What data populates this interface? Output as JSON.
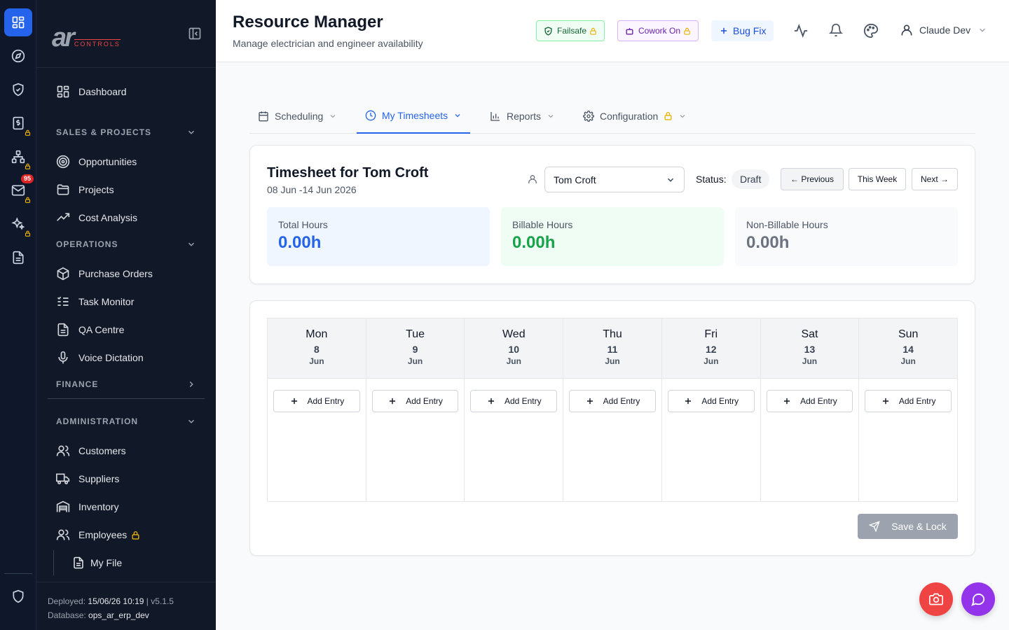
{
  "rail": {
    "mail_badge": "95"
  },
  "sidebar": {
    "logo_main": "ar",
    "logo_sub": "CONTROLS",
    "dashboard": "Dashboard",
    "sales_section": "SALES & PROJECTS",
    "opportunities": "Opportunities",
    "projects": "Projects",
    "cost_analysis": "Cost Analysis",
    "operations_section": "OPERATIONS",
    "purchase_orders": "Purchase Orders",
    "task_monitor": "Task Monitor",
    "qa_centre": "QA Centre",
    "voice_dictation": "Voice Dictation",
    "finance_section": "FINANCE",
    "admin_section": "ADMINISTRATION",
    "customers": "Customers",
    "suppliers": "Suppliers",
    "inventory": "Inventory",
    "employees": "Employees",
    "my_file": "My File",
    "deployed_label": "Deployed:",
    "deployed_value": "15/06/26 10:19",
    "version": "v5.1.5",
    "database_label": "Database:",
    "database_value": "ops_ar_erp_dev"
  },
  "header": {
    "title": "Resource Manager",
    "subtitle": "Manage electrician and engineer availability",
    "failsafe": "Failsafe",
    "cowork": "Cowork On",
    "bugfix": "Bug Fix",
    "user": "Claude Dev"
  },
  "tabs": {
    "scheduling": "Scheduling",
    "timesheets": "My Timesheets",
    "reports": "Reports",
    "configuration": "Configuration"
  },
  "timesheet": {
    "title": "Timesheet for Tom Croft",
    "range": "08 Jun -14 Jun 2026",
    "employee": "Tom Croft",
    "status_label": "Status:",
    "status": "Draft",
    "prev": "← Previous",
    "this_week": "This Week",
    "next": "Next →",
    "total_label": "Total Hours",
    "total_value": "0.00h",
    "billable_label": "Billable Hours",
    "billable_value": "0.00h",
    "nonbillable_label": "Non-Billable Hours",
    "nonbillable_value": "0.00h"
  },
  "week": {
    "days": [
      {
        "name": "Mon",
        "num": "8",
        "month": "Jun"
      },
      {
        "name": "Tue",
        "num": "9",
        "month": "Jun"
      },
      {
        "name": "Wed",
        "num": "10",
        "month": "Jun"
      },
      {
        "name": "Thu",
        "num": "11",
        "month": "Jun"
      },
      {
        "name": "Fri",
        "num": "12",
        "month": "Jun"
      },
      {
        "name": "Sat",
        "num": "13",
        "month": "Jun"
      },
      {
        "name": "Sun",
        "num": "14",
        "month": "Jun"
      }
    ],
    "add_entry": "Add Entry",
    "save_lock": "Save & Lock"
  },
  "colors": {
    "accent": "#2563eb",
    "sidebar_bg": "#111827",
    "rail_bg": "#0f172a",
    "billable": "#16a34a",
    "save_disabled": "#9ca3af",
    "fab_red": "#ef4444",
    "fab_purple": "#9333ea"
  },
  "icons": [
    "dashboard-icon",
    "compass-icon",
    "shield-check-icon",
    "dollar-icon",
    "org-chart-icon",
    "mail-icon",
    "sparkles-icon",
    "file-icon",
    "shield-icon",
    "target-icon",
    "folder-icon",
    "trend-icon",
    "box-icon",
    "list-check-icon",
    "mic-icon",
    "users-icon",
    "truck-icon",
    "warehouse-icon",
    "camera-icon",
    "chat-icon",
    "palette-icon",
    "bell-icon",
    "activity-icon",
    "user-icon"
  ]
}
